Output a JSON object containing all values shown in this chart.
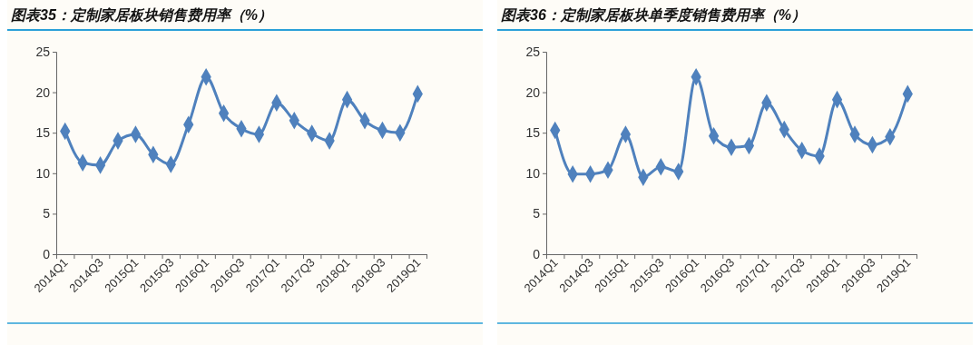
{
  "chart_data": [
    {
      "type": "line",
      "title": "图表35：定制家居板块销售费用率（%）",
      "categories": [
        "2014Q1",
        null,
        "2014Q3",
        null,
        "2015Q1",
        null,
        "2015Q3",
        null,
        "2016Q1",
        null,
        "2016Q3",
        null,
        "2017Q1",
        null,
        "2017Q3",
        null,
        "2018Q1",
        null,
        "2018Q3",
        null,
        "2019Q1"
      ],
      "series": [
        {
          "color": "#4f81bd",
          "values": [
            15.2,
            11.3,
            11.0,
            14.0,
            14.8,
            12.3,
            11.1,
            16.0,
            21.9,
            17.4,
            15.5,
            14.8,
            18.7,
            16.5,
            14.9,
            14.0,
            19.1,
            16.5,
            15.3,
            15.0,
            19.8
          ]
        }
      ],
      "ylim": [
        0,
        25
      ],
      "yticks": [
        0,
        5,
        10,
        15,
        20,
        25
      ],
      "grid": false,
      "marker": "diamond",
      "line_style": "solid"
    },
    {
      "type": "line",
      "title": "图表36：定制家居板块单季度销售费用率（%）",
      "categories": [
        "2014Q1",
        null,
        "2014Q3",
        null,
        "2015Q1",
        null,
        "2015Q3",
        null,
        "2016Q1",
        null,
        "2016Q3",
        null,
        "2017Q1",
        null,
        "2017Q3",
        null,
        "2018Q1",
        null,
        "2018Q3",
        null,
        "2019Q1"
      ],
      "series": [
        {
          "color": "#4f81bd",
          "values": [
            15.3,
            9.9,
            9.9,
            10.4,
            14.8,
            9.5,
            10.8,
            10.2,
            21.9,
            14.6,
            13.2,
            13.4,
            18.7,
            15.4,
            12.8,
            12.1,
            19.1,
            14.8,
            13.5,
            14.5,
            19.8
          ]
        }
      ],
      "ylim": [
        0,
        25
      ],
      "yticks": [
        0,
        5,
        10,
        15,
        20,
        25
      ],
      "grid": false,
      "marker": "diamond",
      "line_style": "solid"
    }
  ]
}
